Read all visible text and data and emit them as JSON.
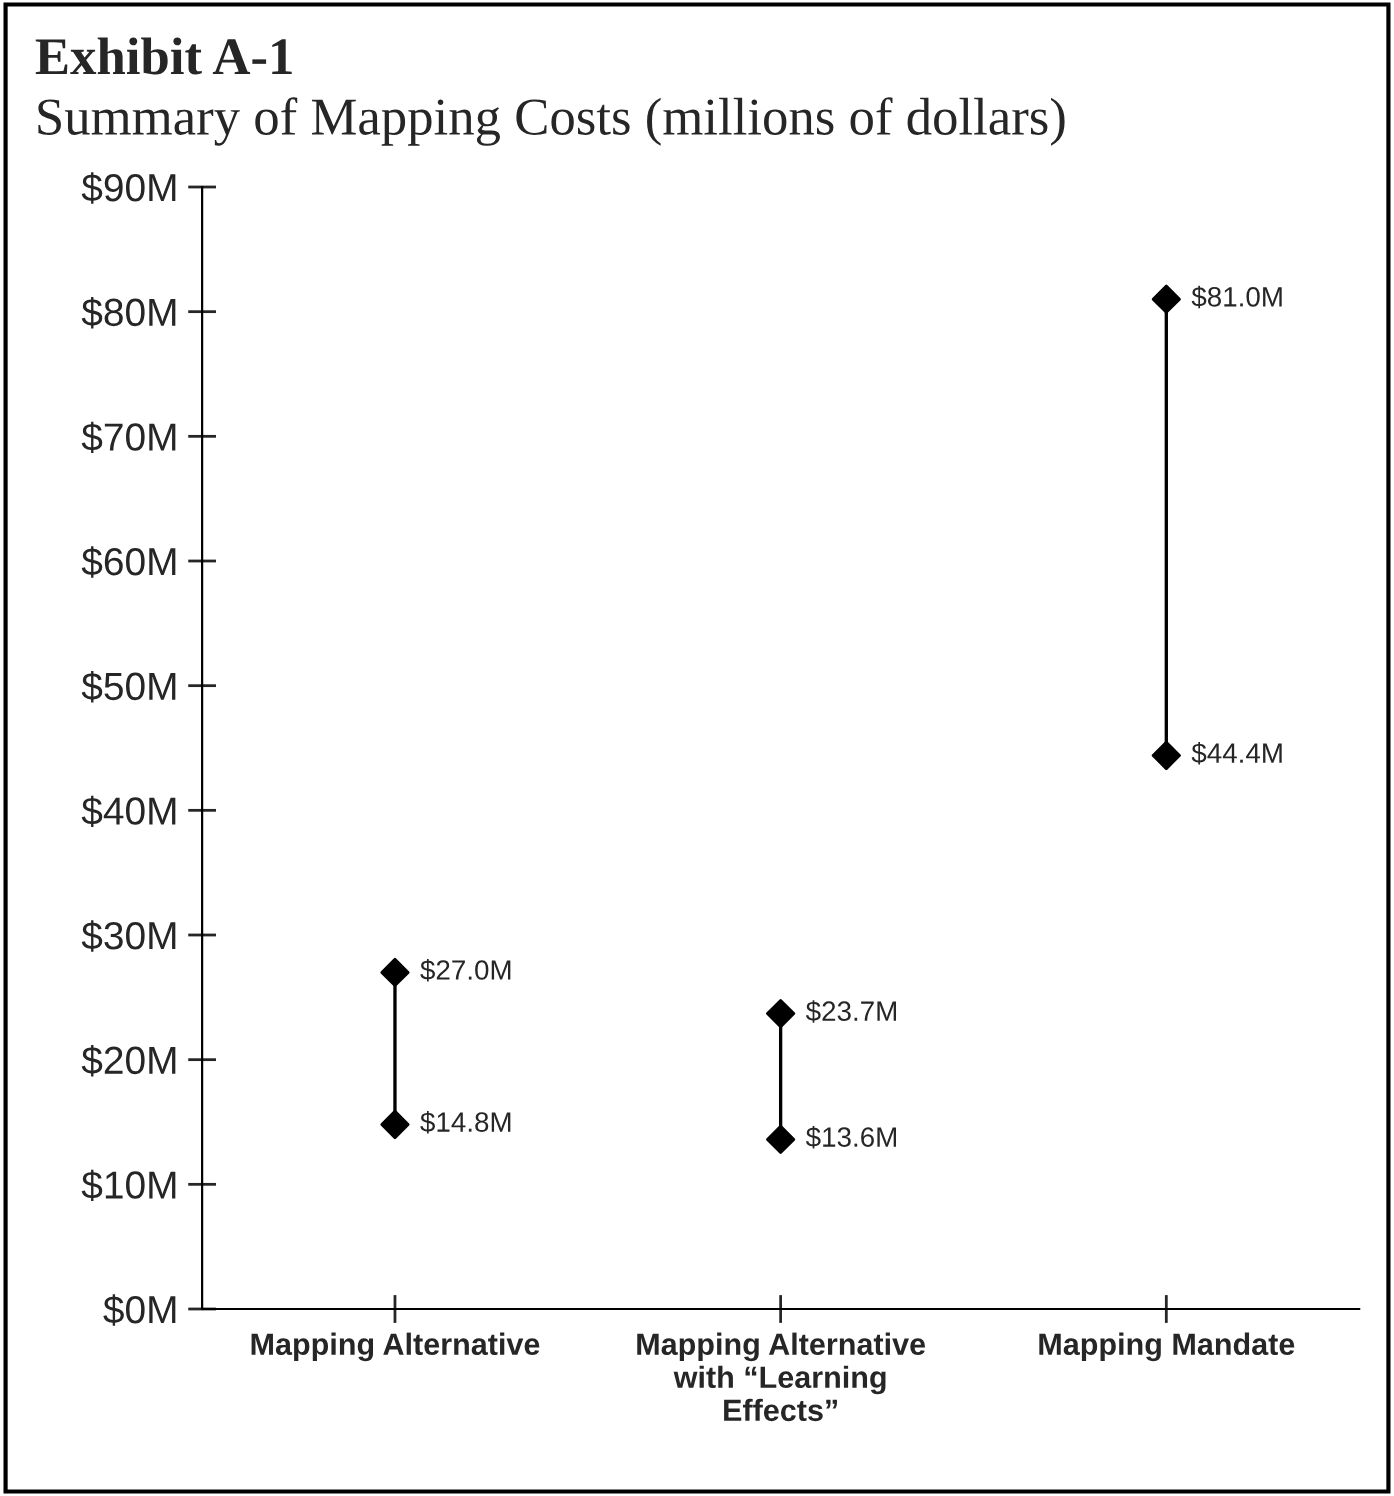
{
  "chart_data": {
    "type": "scatter",
    "title": "Exhibit A-1",
    "subtitle": "Summary of Mapping Costs (millions of dollars)",
    "categories": [
      "Mapping Alternative",
      "Mapping Alternative\nwith “Learning\nEffects”",
      "Mapping Mandate"
    ],
    "series": [
      {
        "color": "#000000",
        "values": [
          27.0,
          23.7,
          81.0
        ],
        "value_labels": [
          "$27.0M",
          "$23.7M",
          "$81.0M"
        ]
      },
      {
        "color": "#000000",
        "values": [
          14.8,
          13.6,
          44.4
        ],
        "value_labels": [
          "$14.8M",
          "$13.6M",
          "$44.4M"
        ]
      }
    ],
    "marker": "diamond",
    "grid": false,
    "legend": false,
    "ylim": [
      0,
      90
    ],
    "yticks": [
      {
        "value": 0,
        "label": "$0M"
      },
      {
        "value": 10,
        "label": "$10M"
      },
      {
        "value": 20,
        "label": "$20M"
      },
      {
        "value": 30,
        "label": "$30M"
      },
      {
        "value": 40,
        "label": "$40M"
      },
      {
        "value": 50,
        "label": "$50M"
      },
      {
        "value": 60,
        "label": "$60M"
      },
      {
        "value": 70,
        "label": "$70M"
      },
      {
        "value": 80,
        "label": "$80M"
      },
      {
        "value": 90,
        "label": "$90M"
      }
    ]
  }
}
